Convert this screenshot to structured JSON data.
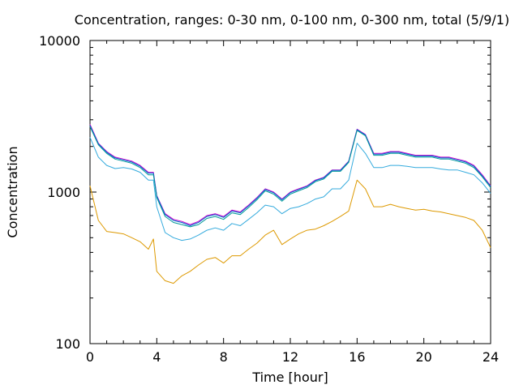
{
  "chart_data": {
    "type": "line",
    "title": "Concentration, ranges: 0-30 nm, 0-100 nm, 0-300 nm, total (5/9/1)",
    "xlabel": "Time [hour]",
    "ylabel": "Concentration",
    "xlim": [
      0,
      24
    ],
    "ylim": [
      100,
      10000
    ],
    "yscale": "log",
    "grid": false,
    "legend": "none",
    "xticks": [
      "0",
      "4",
      "8",
      "12",
      "16",
      "20",
      "24"
    ],
    "yticks": [
      "100",
      "1000",
      "10000"
    ],
    "x": [
      0,
      0.5,
      1,
      1.5,
      2,
      2.5,
      3,
      3.5,
      3.8,
      4,
      4.5,
      5,
      5.5,
      6,
      6.5,
      7,
      7.5,
      8,
      8.5,
      9,
      9.5,
      10,
      10.5,
      11,
      11.5,
      12,
      12.5,
      13,
      13.5,
      14,
      14.5,
      15,
      15.5,
      16,
      16.5,
      17,
      17.5,
      18,
      18.5,
      19,
      19.5,
      20,
      20.5,
      21,
      21.5,
      22,
      22.5,
      23,
      23.5,
      24
    ],
    "series": [
      {
        "color": "#cc00cc",
        "values": [
          2800,
          2100,
          1850,
          1700,
          1650,
          1600,
          1500,
          1350,
          1350,
          950,
          720,
          660,
          640,
          610,
          640,
          700,
          720,
          690,
          760,
          740,
          820,
          920,
          1050,
          1000,
          900,
          1000,
          1050,
          1100,
          1200,
          1250,
          1400,
          1400,
          1600,
          2600,
          2400,
          1800,
          1800,
          1850,
          1850,
          1800,
          1750,
          1750,
          1750,
          1700,
          1700,
          1650,
          1600,
          1500,
          1300,
          1100
        ]
      },
      {
        "color": "#0066cc",
        "values": [
          2750,
          2080,
          1830,
          1680,
          1630,
          1580,
          1480,
          1330,
          1330,
          940,
          710,
          650,
          630,
          600,
          630,
          690,
          710,
          680,
          750,
          730,
          810,
          910,
          1040,
          990,
          890,
          990,
          1040,
          1090,
          1190,
          1240,
          1390,
          1390,
          1590,
          2580,
          2380,
          1780,
          1780,
          1830,
          1830,
          1780,
          1730,
          1730,
          1730,
          1680,
          1680,
          1630,
          1580,
          1480,
          1280,
          1090
        ]
      },
      {
        "color": "#009999",
        "values": [
          2700,
          2050,
          1800,
          1650,
          1600,
          1550,
          1450,
          1300,
          1300,
          920,
          690,
          630,
          610,
          590,
          610,
          670,
          690,
          660,
          730,
          710,
          790,
          890,
          1020,
          970,
          870,
          970,
          1020,
          1070,
          1170,
          1220,
          1370,
          1370,
          1570,
          2550,
          2350,
          1750,
          1750,
          1800,
          1800,
          1750,
          1700,
          1700,
          1700,
          1650,
          1650,
          1600,
          1550,
          1450,
          1260,
          1070
        ]
      },
      {
        "color": "#33aadd",
        "values": [
          2300,
          1700,
          1500,
          1430,
          1450,
          1420,
          1350,
          1200,
          1200,
          800,
          540,
          500,
          480,
          490,
          520,
          560,
          580,
          560,
          620,
          600,
          660,
          730,
          820,
          800,
          720,
          780,
          800,
          840,
          900,
          930,
          1050,
          1050,
          1200,
          2100,
          1800,
          1450,
          1450,
          1500,
          1500,
          1480,
          1450,
          1450,
          1450,
          1420,
          1400,
          1400,
          1350,
          1300,
          1150,
          980
        ]
      },
      {
        "color": "#dd9900",
        "values": [
          1100,
          650,
          550,
          540,
          530,
          500,
          470,
          420,
          490,
          300,
          260,
          250,
          280,
          300,
          330,
          360,
          370,
          340,
          380,
          380,
          420,
          460,
          520,
          560,
          450,
          490,
          530,
          560,
          570,
          600,
          640,
          690,
          750,
          1200,
          1050,
          800,
          800,
          830,
          800,
          780,
          760,
          770,
          750,
          740,
          720,
          700,
          680,
          650,
          560,
          430
        ]
      }
    ]
  }
}
